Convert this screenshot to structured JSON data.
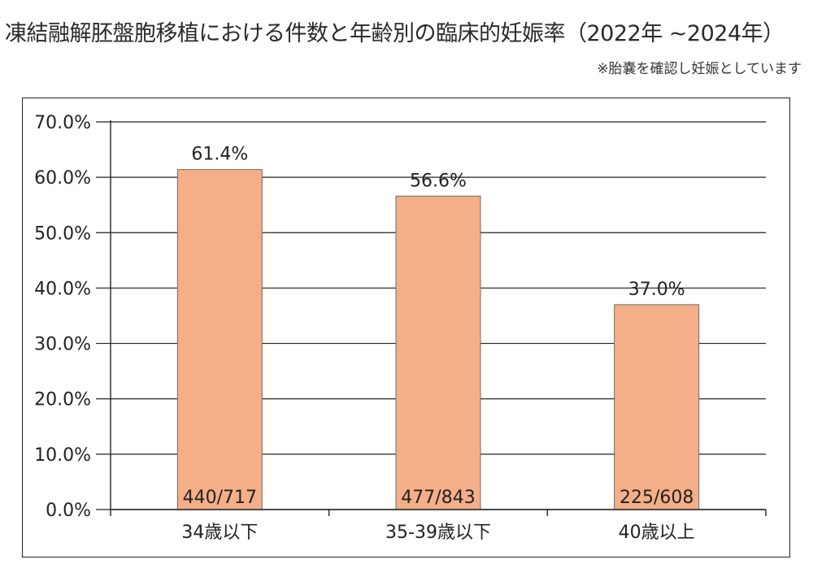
{
  "header": {
    "title": "凍結融解胚盤胞移植における件数と年齢別の臨床的妊娠率（2022年 ~2024年）",
    "note": "※胎嚢を確認し妊娠としています"
  },
  "chart_data": {
    "type": "bar",
    "title": "凍結融解胚盤胞移植における件数と年齢別の臨床的妊娠率（2022年 ~2024年）",
    "categories": [
      "34歳以下",
      "35-39歳以下",
      "40歳以上"
    ],
    "values": [
      61.4,
      56.6,
      37.0
    ],
    "value_labels": [
      "61.4%",
      "56.6%",
      "37.0%"
    ],
    "count_labels": [
      "440/717",
      "477/843",
      "225/608"
    ],
    "yticks": [
      "0.0%",
      "10.0%",
      "20.0%",
      "30.0%",
      "40.0%",
      "50.0%",
      "60.0%",
      "70.0%"
    ],
    "ylim": [
      0,
      70
    ],
    "grid": true,
    "legend": "none",
    "bar_color": "#F4AF88",
    "bar_edge_color": "#6b6b6b"
  }
}
